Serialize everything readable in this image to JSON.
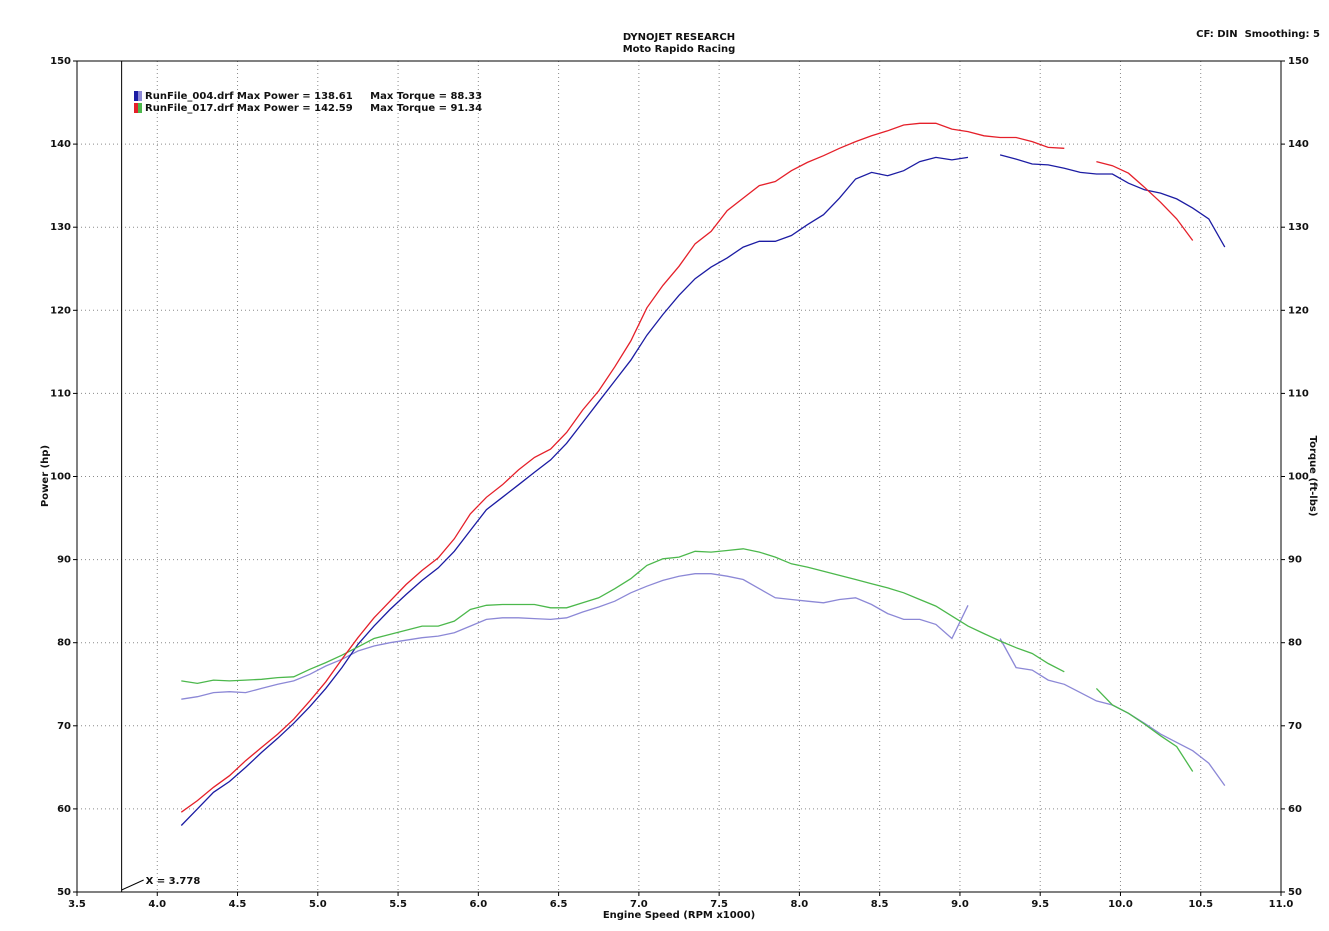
{
  "header": {
    "title": "DYNOJET RESEARCH",
    "subtitle": "Moto Rapido Racing",
    "settings": "CF: DIN  Smoothing: 5"
  },
  "chart_data": {
    "type": "line",
    "xlabel": "Engine Speed (RPM x1000)",
    "ylabel": "Power (hp)",
    "y2label": "Torque (ft-lbs)",
    "grid": true,
    "xlim": [
      3.5,
      11
    ],
    "xticks": [
      3.5,
      {
        "value": 4,
        "label": "4.0"
      },
      4.5,
      {
        "value": 5,
        "label": "5.0"
      },
      5.5,
      {
        "value": 6,
        "label": "6.0"
      },
      6.5,
      {
        "value": 7,
        "label": "7.0"
      },
      7.5,
      {
        "value": 8,
        "label": "8.0"
      },
      8.5,
      {
        "value": 9,
        "label": "9.0"
      },
      9.5,
      {
        "value": 10,
        "label": "10.0"
      },
      10.5,
      {
        "value": 11,
        "label": "11.0"
      }
    ],
    "ylim": [
      50,
      150
    ],
    "yticks": [
      50,
      60,
      70,
      80,
      90,
      100,
      110,
      120,
      130,
      140,
      150
    ],
    "y2lim": [
      50,
      150
    ],
    "y2ticks": [
      50,
      60,
      70,
      80,
      90,
      100,
      110,
      120,
      130,
      140,
      150
    ],
    "cursor": {
      "value": 3.778,
      "label": "X = 3.778"
    },
    "x": [
      4.15,
      4.25,
      4.35,
      4.45,
      4.55,
      4.65,
      4.75,
      4.85,
      4.95,
      5.05,
      5.15,
      5.25,
      5.35,
      5.45,
      5.55,
      5.65,
      5.75,
      5.85,
      5.95,
      6.05,
      6.15,
      6.25,
      6.35,
      6.45,
      6.55,
      6.65,
      6.75,
      6.85,
      6.95,
      7.05,
      7.15,
      7.25,
      7.35,
      7.45,
      7.55,
      7.65,
      7.75,
      7.85,
      7.95,
      8.05,
      8.15,
      8.25,
      8.35,
      8.45,
      8.55,
      8.65,
      8.75,
      8.85,
      8.95,
      9.05,
      9.15,
      9.25,
      9.35,
      9.45,
      9.55,
      9.65,
      9.75,
      9.85,
      9.95,
      10.05,
      10.15,
      10.25,
      10.35,
      10.45,
      10.55,
      10.65
    ],
    "runs": [
      {
        "label": "RunFile_004.drf Max Power = 138.61     Max Torque = 88.33",
        "power": {
          "color": "#1c1ca3",
          "values": [
            58,
            60,
            62,
            63.3,
            65,
            66.8,
            68.5,
            70.3,
            72.3,
            74.5,
            77,
            79.8,
            82,
            84,
            85.8,
            87.5,
            89,
            91,
            93.5,
            96,
            97.5,
            99,
            100.5,
            102,
            104,
            106.5,
            109,
            111.5,
            114,
            117,
            119.5,
            121.8,
            123.8,
            125.2,
            126.3,
            127.6,
            128.3,
            128.3,
            129,
            130.3,
            131.5,
            133.5,
            135.8,
            136.6,
            136.2,
            136.8,
            137.9,
            138.4,
            138.1,
            138.4,
            null,
            138.7,
            138.2,
            137.6,
            137.5,
            137.1,
            136.6,
            136.4,
            136.4,
            135.3,
            134.5,
            134.1,
            133.4,
            132.3,
            131,
            127.6
          ]
        },
        "torque": {
          "color": "#8c88d6",
          "axis": "y2",
          "values": [
            73.2,
            73.5,
            74,
            74.1,
            74,
            74.5,
            75,
            75.4,
            76.2,
            77.2,
            78,
            79,
            79.6,
            80,
            80.3,
            80.6,
            80.8,
            81.2,
            82,
            82.8,
            83,
            83,
            82.9,
            82.8,
            83,
            83.7,
            84.3,
            85,
            86,
            86.8,
            87.5,
            88,
            88.3,
            88.3,
            88,
            87.6,
            86.5,
            85.4,
            85.2,
            85,
            84.8,
            85.2,
            85.4,
            84.6,
            83.5,
            82.8,
            82.8,
            82.2,
            80.5,
            84.5,
            null,
            80.5,
            77,
            76.7,
            75.5,
            75,
            74,
            73,
            72.5,
            71.5,
            70.3,
            69,
            68,
            67,
            65.5,
            62.8
          ]
        }
      },
      {
        "label": "RunFile_017.drf Max Power = 142.59     Max Torque = 91.34",
        "power": {
          "color": "#e5202a",
          "values": [
            59.6,
            61,
            62.6,
            64,
            65.8,
            67.4,
            69,
            70.8,
            73,
            75.3,
            78,
            80.6,
            83,
            85,
            87,
            88.7,
            90.2,
            92.5,
            95.5,
            97.5,
            99,
            100.8,
            102.3,
            103.3,
            105.3,
            108,
            110.3,
            113.2,
            116.3,
            120.3,
            123,
            125.3,
            128,
            129.5,
            132,
            133.5,
            135,
            135.5,
            136.8,
            137.8,
            138.6,
            139.5,
            140.3,
            141,
            141.6,
            142.3,
            142.5,
            142.5,
            141.8,
            141.5,
            141,
            140.8,
            140.8,
            140.3,
            139.6,
            139.5,
            null,
            137.9,
            137.4,
            136.5,
            134.8,
            133,
            131,
            128.4,
            null,
            null
          ]
        },
        "torque": {
          "color": "#4cb84c",
          "axis": "y2",
          "values": [
            75.4,
            75.1,
            75.5,
            75.4,
            75.5,
            75.6,
            75.8,
            75.9,
            76.8,
            77.6,
            78.5,
            79.5,
            80.5,
            81,
            81.5,
            82,
            82,
            82.6,
            84,
            84.5,
            84.6,
            84.6,
            84.6,
            84.2,
            84.2,
            84.8,
            85.4,
            86.5,
            87.7,
            89.3,
            90.1,
            90.3,
            91,
            90.9,
            91.1,
            91.3,
            90.9,
            90.3,
            89.5,
            89.1,
            88.6,
            88.1,
            87.6,
            87.1,
            86.6,
            86,
            85.2,
            84.4,
            83.2,
            82,
            81.1,
            80.2,
            79.4,
            78.7,
            77.5,
            76.5,
            null,
            74.5,
            72.5,
            71.5,
            70.2,
            68.8,
            67.5,
            64.5,
            null,
            null
          ]
        }
      }
    ]
  }
}
